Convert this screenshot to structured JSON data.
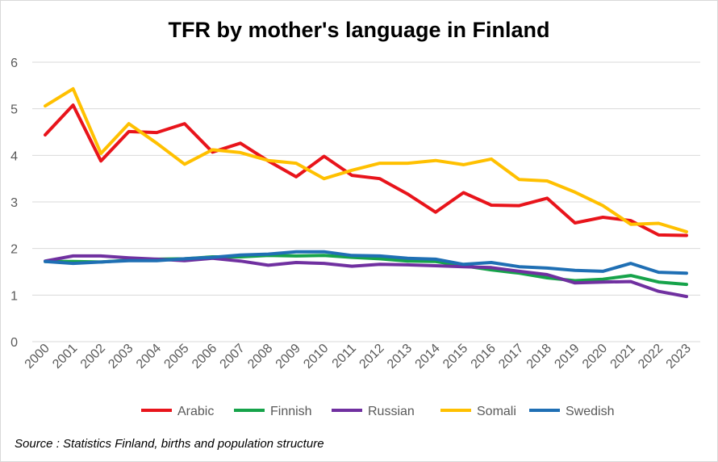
{
  "chart_data": {
    "type": "line",
    "title": "TFR by mother's language in Finland",
    "xlabel": "",
    "ylabel": "",
    "ylim": [
      0,
      6
    ],
    "yticks": [
      "0",
      "1",
      "2",
      "3",
      "4",
      "5",
      "6"
    ],
    "grid": true,
    "legend_position": "bottom",
    "categories": [
      "2000",
      "2001",
      "2002",
      "2003",
      "2004",
      "2005",
      "2006",
      "2007",
      "2008",
      "2009",
      "2010",
      "2011",
      "2012",
      "2013",
      "2014",
      "2015",
      "2016",
      "2017",
      "2018",
      "2019",
      "2020",
      "2021",
      "2022",
      "2023"
    ],
    "series": [
      {
        "name": "Arabic",
        "color": "#e8141b",
        "values": [
          4.44,
          5.08,
          3.88,
          4.51,
          4.49,
          4.68,
          4.07,
          4.26,
          3.88,
          3.54,
          3.98,
          3.57,
          3.5,
          3.17,
          2.78,
          3.2,
          2.93,
          2.92,
          3.08,
          2.55,
          2.67,
          2.6,
          2.29,
          2.28
        ]
      },
      {
        "name": "Finnish",
        "color": "#16a34a",
        "values": [
          1.72,
          1.72,
          1.71,
          1.75,
          1.77,
          1.78,
          1.82,
          1.82,
          1.85,
          1.84,
          1.85,
          1.81,
          1.78,
          1.73,
          1.72,
          1.63,
          1.54,
          1.47,
          1.37,
          1.31,
          1.34,
          1.42,
          1.28,
          1.23
        ]
      },
      {
        "name": "Russian",
        "color": "#7030a0",
        "values": [
          1.73,
          1.84,
          1.84,
          1.8,
          1.77,
          1.74,
          1.79,
          1.73,
          1.64,
          1.7,
          1.68,
          1.62,
          1.66,
          1.65,
          1.63,
          1.61,
          1.59,
          1.51,
          1.44,
          1.26,
          1.28,
          1.29,
          1.08,
          0.97
        ]
      },
      {
        "name": "Somali",
        "color": "#ffc000",
        "values": [
          5.06,
          5.43,
          4.04,
          4.68,
          4.26,
          3.81,
          4.12,
          4.06,
          3.89,
          3.83,
          3.5,
          3.68,
          3.83,
          3.83,
          3.89,
          3.8,
          3.92,
          3.48,
          3.45,
          3.21,
          2.92,
          2.52,
          2.54,
          2.36
        ]
      },
      {
        "name": "Swedish",
        "color": "#1f6fb4",
        "values": [
          1.72,
          1.68,
          1.71,
          1.74,
          1.74,
          1.78,
          1.81,
          1.86,
          1.88,
          1.93,
          1.93,
          1.85,
          1.84,
          1.79,
          1.77,
          1.66,
          1.7,
          1.61,
          1.58,
          1.53,
          1.51,
          1.68,
          1.49,
          1.47
        ]
      }
    ]
  },
  "source_note": "Source : Statistics Finland, births and population structure"
}
